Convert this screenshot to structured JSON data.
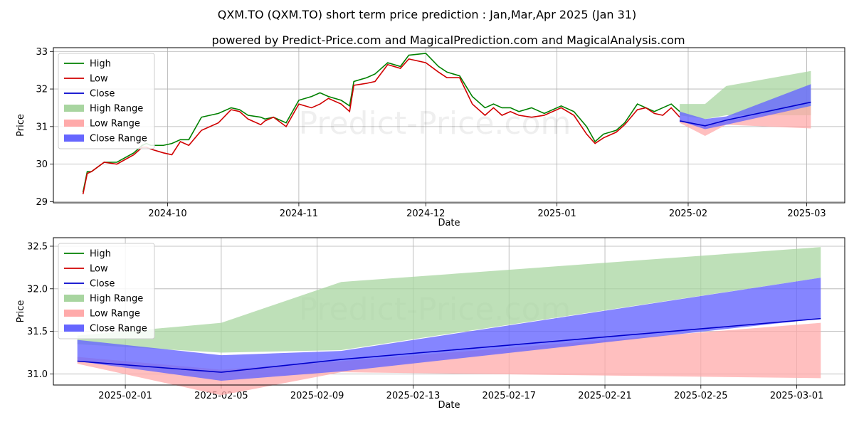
{
  "title_line1": "QXM.TO (QXM.TO) short term price prediction : Jan,Mar,Apr 2025 (Jan 31)",
  "title_line2": "powered by Predict-Price.com and MagicalPrediction.com and MagicalAnalysis.com",
  "watermark": "Predict-Price.com",
  "colors": {
    "high": "#008000",
    "low": "#d00000",
    "close": "#0000cc",
    "high_range": "#a8d5a0",
    "low_range": "#ffaaaa",
    "close_range": "#6666ff"
  },
  "legend": [
    "High",
    "Low",
    "Close",
    "High Range",
    "Low Range",
    "Close Range"
  ],
  "chart_data": [
    {
      "type": "line",
      "xlabel": "Date",
      "ylabel": "Price",
      "xlim": [
        "2024-09-04",
        "2025-03-10"
      ],
      "ylim": [
        28.97,
        33.1
      ],
      "grid": true,
      "legend_position": "top-left",
      "xticks": [
        "2024-10",
        "2024-11",
        "2024-12",
        "2025-01",
        "2025-02",
        "2025-03"
      ],
      "yticks": [
        29,
        30,
        31,
        32,
        33
      ],
      "history": {
        "x": [
          "2024-09-11",
          "2024-09-12",
          "2024-09-13",
          "2024-09-16",
          "2024-09-19",
          "2024-09-23",
          "2024-09-25",
          "2024-09-26",
          "2024-09-27",
          "2024-09-30",
          "2024-10-02",
          "2024-10-04",
          "2024-10-06",
          "2024-10-09",
          "2024-10-11",
          "2024-10-13",
          "2024-10-16",
          "2024-10-18",
          "2024-10-20",
          "2024-10-23",
          "2024-10-24",
          "2024-10-26",
          "2024-10-29",
          "2024-11-01",
          "2024-11-04",
          "2024-11-06",
          "2024-11-08",
          "2024-11-11",
          "2024-11-13",
          "2024-11-14",
          "2024-11-17",
          "2024-11-19",
          "2024-11-20",
          "2024-11-22",
          "2024-11-25",
          "2024-11-27",
          "2024-12-01",
          "2024-12-04",
          "2024-12-06",
          "2024-12-09",
          "2024-12-12",
          "2024-12-15",
          "2024-12-17",
          "2024-12-19",
          "2024-12-21",
          "2024-12-23",
          "2024-12-26",
          "2024-12-29",
          "2025-01-02",
          "2025-01-05",
          "2025-01-08",
          "2025-01-10",
          "2025-01-12",
          "2025-01-15",
          "2025-01-17",
          "2025-01-20",
          "2025-01-22",
          "2025-01-24",
          "2025-01-26",
          "2025-01-28",
          "2025-01-30"
        ],
        "high": [
          29.25,
          29.8,
          29.8,
          30.05,
          30.05,
          30.3,
          30.5,
          30.55,
          30.5,
          30.5,
          30.55,
          30.65,
          30.65,
          31.25,
          31.3,
          31.35,
          31.5,
          31.45,
          31.3,
          31.25,
          31.2,
          31.25,
          31.1,
          31.7,
          31.8,
          31.9,
          31.8,
          31.7,
          31.55,
          32.2,
          32.3,
          32.4,
          32.5,
          32.7,
          32.6,
          32.9,
          32.95,
          32.6,
          32.45,
          32.35,
          31.8,
          31.5,
          31.6,
          31.5,
          31.5,
          31.4,
          31.5,
          31.35,
          31.55,
          31.4,
          31.0,
          30.6,
          30.8,
          30.9,
          31.1,
          31.6,
          31.5,
          31.4,
          31.5,
          31.6,
          31.4
        ],
        "low": [
          29.2,
          29.75,
          29.8,
          30.05,
          30.0,
          30.25,
          30.45,
          30.45,
          30.4,
          30.3,
          30.25,
          30.6,
          30.5,
          30.9,
          31.0,
          31.1,
          31.45,
          31.4,
          31.2,
          31.05,
          31.15,
          31.25,
          31.0,
          31.6,
          31.5,
          31.6,
          31.75,
          31.6,
          31.4,
          32.1,
          32.15,
          32.2,
          32.35,
          32.65,
          32.55,
          32.8,
          32.7,
          32.45,
          32.3,
          32.3,
          31.6,
          31.3,
          31.5,
          31.3,
          31.4,
          31.3,
          31.25,
          31.3,
          31.5,
          31.3,
          30.8,
          30.55,
          30.7,
          30.85,
          31.05,
          31.45,
          31.5,
          31.35,
          31.3,
          31.5,
          31.25
        ]
      },
      "prediction": {
        "x": [
          "2025-01-30",
          "2025-02-05",
          "2025-02-10",
          "2025-03-02"
        ],
        "close": [
          31.15,
          31.02,
          31.17,
          31.65
        ],
        "high_range": [
          [
            31.3,
            31.6
          ],
          [
            31.2,
            31.6
          ],
          [
            31.3,
            32.08
          ],
          [
            31.3,
            32.48
          ]
        ],
        "low_range": [
          [
            31.1,
            31.2
          ],
          [
            30.75,
            31.0
          ],
          [
            31.05,
            31.15
          ],
          [
            30.95,
            31.55
          ]
        ],
        "close_range": [
          [
            31.15,
            31.4
          ],
          [
            30.93,
            31.2
          ],
          [
            31.05,
            31.27
          ],
          [
            31.55,
            32.13
          ]
        ]
      }
    },
    {
      "type": "line",
      "xlabel": "Date",
      "ylabel": "Price",
      "xlim": [
        "2025-01-29",
        "2025-03-03"
      ],
      "ylim": [
        30.87,
        32.6
      ],
      "grid": true,
      "legend_position": "top-left",
      "xticks": [
        "2025-02-01",
        "2025-02-05",
        "2025-02-09",
        "2025-02-13",
        "2025-02-17",
        "2025-02-21",
        "2025-02-25",
        "2025-03-01"
      ],
      "yticks": [
        "31.0",
        "31.5",
        "32.0",
        "32.5"
      ],
      "prediction": {
        "x": [
          "2025-01-30",
          "2025-02-05",
          "2025-02-10",
          "2025-03-02"
        ],
        "close": [
          31.15,
          31.02,
          31.17,
          31.65
        ],
        "high_range": [
          [
            31.35,
            31.45
          ],
          [
            31.25,
            31.6
          ],
          [
            31.28,
            32.08
          ],
          [
            32.13,
            32.49
          ]
        ],
        "low_range": [
          [
            31.12,
            31.2
          ],
          [
            30.75,
            31.05
          ],
          [
            31.02,
            31.15
          ],
          [
            30.95,
            31.6
          ]
        ],
        "close_range": [
          [
            31.15,
            31.4
          ],
          [
            30.92,
            31.22
          ],
          [
            31.03,
            31.27
          ],
          [
            31.65,
            32.13
          ]
        ]
      }
    }
  ]
}
